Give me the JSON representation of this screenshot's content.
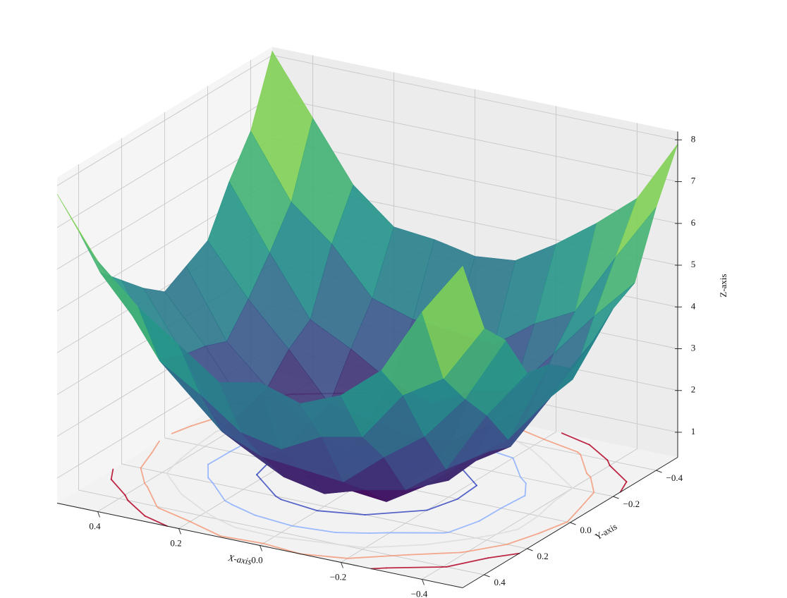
{
  "chart_data": {
    "type": "surface",
    "xlabel": "X-axis",
    "ylabel": "Y-axis",
    "zlabel": "Z-axis",
    "x": [
      -0.5,
      -0.4,
      -0.3,
      -0.2,
      -0.1,
      0,
      0.1,
      0.2,
      0.3,
      0.4,
      0.5
    ],
    "y": [
      -0.5,
      -0.4,
      -0.3,
      -0.2,
      -0.1,
      0,
      0.1,
      0.2,
      0.3,
      0.4,
      0.5
    ],
    "z": [
      [
        7.9,
        6.7,
        5.2,
        4.9,
        4.4,
        4.1,
        4.5,
        4.6,
        5.7,
        6.3,
        8.1
      ],
      [
        6.4,
        5.3,
        4.2,
        3.0,
        2.9,
        2.7,
        2.5,
        3.4,
        4.1,
        4.9,
        6.8
      ],
      [
        5.6,
        3.8,
        3.1,
        2.2,
        1.5,
        1.7,
        1.8,
        1.9,
        3.0,
        4.3,
        5.2
      ],
      [
        4.9,
        3.3,
        2.0,
        1.5,
        0.9,
        0.8,
        1.0,
        1.2,
        2.3,
        3.1,
        4.4
      ],
      [
        4.3,
        2.6,
        1.8,
        0.9,
        0.6,
        0.5,
        0.4,
        1.0,
        1.5,
        2.9,
        4.0
      ],
      [
        4.2,
        2.7,
        1.3,
        0.8,
        0.4,
        0.3,
        0.5,
        0.7,
        1.6,
        2.4,
        4.3
      ],
      [
        4.4,
        2.8,
        1.6,
        1.0,
        0.5,
        0.4,
        0.6,
        0.9,
        1.7,
        2.6,
        4.1
      ],
      [
        4.5,
        3.1,
        2.2,
        1.2,
        1.0,
        0.7,
        0.9,
        1.4,
        2.1,
        3.3,
        4.8
      ],
      [
        5.3,
        4.2,
        2.7,
        2.3,
        1.7,
        1.5,
        1.4,
        2.2,
        3.0,
        3.9,
        5.5
      ],
      [
        6.7,
        5.0,
        4.1,
        3.3,
        2.6,
        2.8,
        2.9,
        3.1,
        4.2,
        5.3,
        6.4
      ],
      [
        8.1,
        6.5,
        5.6,
        4.5,
        4.2,
        3.9,
        4.3,
        4.8,
        5.3,
        6.6,
        7.8
      ]
    ],
    "colormap": "viridis",
    "contour_levels": [
      1,
      2,
      3,
      4,
      5
    ],
    "contour_colormap": "coolwarm",
    "xlim": [
      -0.5,
      0.5
    ],
    "ylim": [
      -0.5,
      0.5
    ],
    "zlim": [
      0.4,
      8.2
    ],
    "xticks": [
      {
        "value": -0.4,
        "label": "−0.4"
      },
      {
        "value": -0.2,
        "label": "−0.2"
      },
      {
        "value": 0,
        "label": "0.0"
      },
      0.2,
      0.4
    ],
    "yticks": [
      {
        "value": -0.4,
        "label": "−0.4"
      },
      {
        "value": -0.2,
        "label": "−0.2"
      },
      {
        "value": 0,
        "label": "0.0"
      },
      0.2,
      0.4
    ],
    "zticks": [
      1,
      2,
      3,
      4,
      5,
      6,
      7,
      8
    ],
    "grid": true
  }
}
